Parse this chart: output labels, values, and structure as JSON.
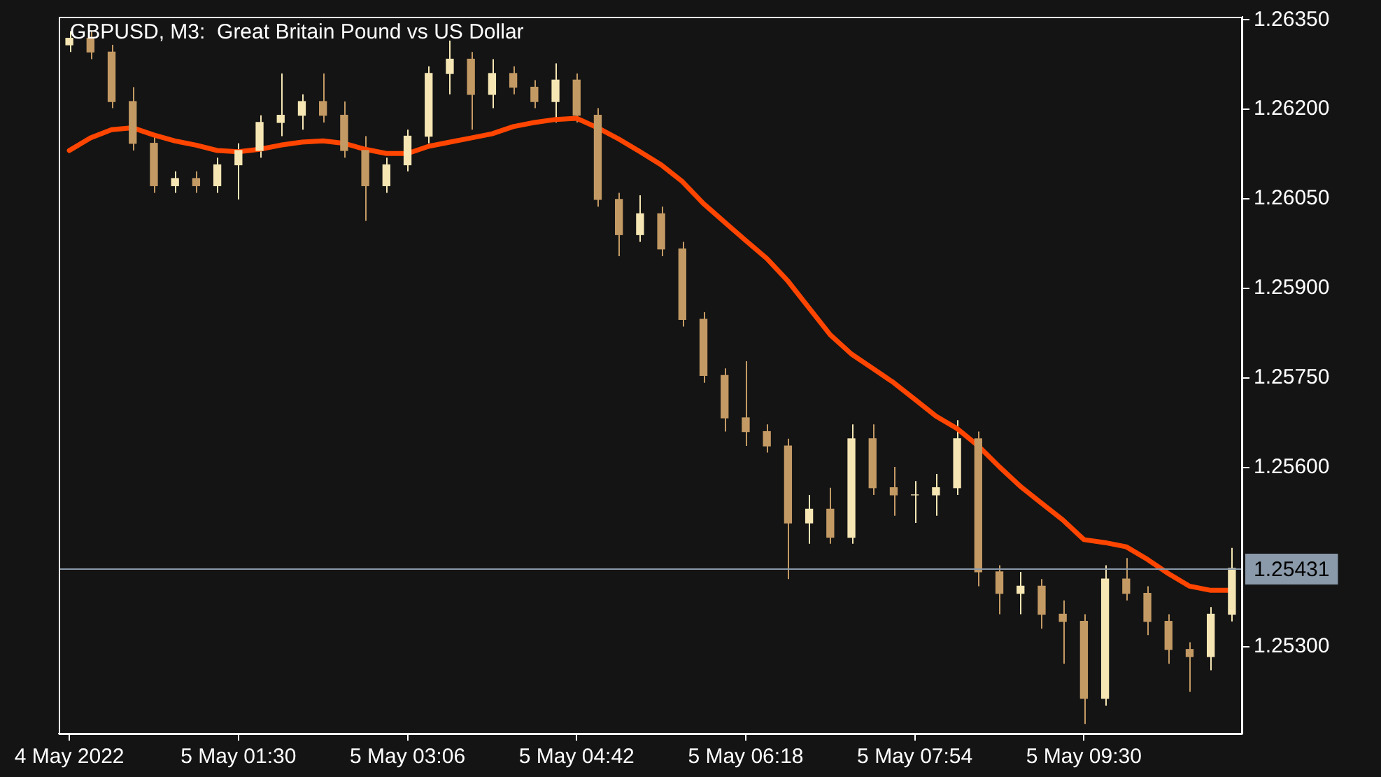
{
  "chart_data": {
    "type": "candlestick",
    "title": "GBPUSD, M3:  Great Britain Pound vs US Dollar",
    "grid": false,
    "legend": false,
    "categories": [
      "4 May 2022",
      null,
      null,
      null,
      null,
      null,
      null,
      null,
      "5 May 01:30",
      null,
      null,
      null,
      null,
      null,
      null,
      null,
      "5 May 03:06",
      null,
      null,
      null,
      null,
      null,
      null,
      null,
      "5 May 04:42",
      null,
      null,
      null,
      null,
      null,
      null,
      null,
      "5 May 06:18",
      null,
      null,
      null,
      null,
      null,
      null,
      null,
      "5 May 07:54",
      null,
      null,
      null,
      null,
      null,
      null,
      null,
      "5 May 09:30",
      null,
      null,
      null,
      null,
      null,
      null,
      null
    ],
    "ylim": [
      1.25154,
      1.26355
    ],
    "yticks": [
      {
        "value": 1.253,
        "label": "1.25300"
      },
      {
        "value": 1.256,
        "label": "1.25600"
      },
      {
        "value": 1.2575,
        "label": "1.25750"
      },
      {
        "value": 1.259,
        "label": "1.25900"
      },
      {
        "value": 1.2605,
        "label": "1.26050"
      },
      {
        "value": 1.262,
        "label": "1.26200"
      },
      {
        "value": 1.2635,
        "label": "1.26350"
      }
    ],
    "ref_lines": [
      {
        "axis": "y",
        "value": 1.25431,
        "label": "1.25431",
        "color": "#8a9aaa"
      }
    ],
    "series": [
      {
        "type": "line",
        "color": "#ff4500",
        "values": [
          1.26131,
          1.26152,
          1.26166,
          1.26169,
          1.26157,
          1.26147,
          1.2614,
          1.26131,
          1.26129,
          1.26133,
          1.2614,
          1.26145,
          1.26147,
          1.26143,
          1.26133,
          1.26126,
          1.26126,
          1.26138,
          1.26145,
          1.26152,
          1.26159,
          1.26171,
          1.26178,
          1.26183,
          1.26185,
          1.26169,
          1.2615,
          1.26129,
          1.26107,
          1.26079,
          1.26042,
          1.26011,
          1.2598,
          1.2595,
          1.25912,
          1.25867,
          1.25822,
          1.2579,
          1.25766,
          1.25742,
          1.25714,
          1.25686,
          1.25665,
          1.25636,
          1.25601,
          1.25568,
          1.2554,
          1.25512,
          1.25479,
          1.25474,
          1.25467,
          1.25446,
          1.25422,
          1.25401,
          1.25394,
          1.25394
        ]
      },
      {
        "ohlc": [
          [
            1.26308,
            1.26331,
            1.26296,
            1.26319
          ],
          [
            1.26319,
            1.26331,
            1.26284,
            1.26296
          ],
          [
            1.26296,
            1.26308,
            1.26202,
            1.26213
          ],
          [
            1.26213,
            1.26237,
            1.26131,
            1.26143
          ],
          [
            1.26143,
            1.26155,
            1.2606,
            1.26072
          ],
          [
            1.26072,
            1.26096,
            1.2606,
            1.26084
          ],
          [
            1.26084,
            1.26096,
            1.2606,
            1.26072
          ],
          [
            1.26072,
            1.26119,
            1.2606,
            1.26107
          ],
          [
            1.26107,
            1.26143,
            1.26049,
            1.26131
          ],
          [
            1.26131,
            1.2619,
            1.26119,
            1.26178
          ],
          [
            1.26178,
            1.2626,
            1.26155,
            1.2619
          ],
          [
            1.2619,
            1.26225,
            1.26166,
            1.26213
          ],
          [
            1.26213,
            1.2626,
            1.26178,
            1.2619
          ],
          [
            1.2619,
            1.26213,
            1.26119,
            1.26131
          ],
          [
            1.26131,
            1.26155,
            1.26013,
            1.26072
          ],
          [
            1.26072,
            1.26119,
            1.2606,
            1.26107
          ],
          [
            1.26107,
            1.26166,
            1.26096,
            1.26155
          ],
          [
            1.26155,
            1.26272,
            1.26143,
            1.2626
          ],
          [
            1.2626,
            1.26315,
            1.26225,
            1.26284
          ],
          [
            1.26284,
            1.26296,
            1.26166,
            1.26225
          ],
          [
            1.26225,
            1.26284,
            1.26202,
            1.2626
          ],
          [
            1.2626,
            1.26272,
            1.26225,
            1.26237
          ],
          [
            1.26237,
            1.26249,
            1.26202,
            1.26213
          ],
          [
            1.26213,
            1.26277,
            1.26178,
            1.26249
          ],
          [
            1.26249,
            1.2626,
            1.26178,
            1.2619
          ],
          [
            1.2619,
            1.26202,
            1.26037,
            1.26049
          ],
          [
            1.26049,
            1.2606,
            1.25954,
            1.2599
          ],
          [
            1.2599,
            1.26056,
            1.25978,
            1.26025
          ],
          [
            1.26025,
            1.26037,
            1.25954,
            1.25966
          ],
          [
            1.25966,
            1.25978,
            1.25836,
            1.25848
          ],
          [
            1.25848,
            1.2586,
            1.25742,
            1.25754
          ],
          [
            1.25754,
            1.25766,
            1.2566,
            1.25683
          ],
          [
            1.25683,
            1.25778,
            1.25636,
            1.2566
          ],
          [
            1.2566,
            1.25672,
            1.25625,
            1.25636
          ],
          [
            1.25636,
            1.25648,
            1.25413,
            1.25507
          ],
          [
            1.25507,
            1.25554,
            1.25472,
            1.2553
          ],
          [
            1.2553,
            1.25566,
            1.25472,
            1.25483
          ],
          [
            1.25483,
            1.25672,
            1.25472,
            1.25648
          ],
          [
            1.25648,
            1.25672,
            1.25554,
            1.25566
          ],
          [
            1.25566,
            1.25601,
            1.25519,
            1.25554
          ],
          [
            1.25554,
            1.25577,
            1.25507,
            1.25554
          ],
          [
            1.25554,
            1.25589,
            1.25519,
            1.25566
          ],
          [
            1.25566,
            1.25679,
            1.25554,
            1.25648
          ],
          [
            1.25648,
            1.2566,
            1.25401,
            1.25425
          ],
          [
            1.25425,
            1.25436,
            1.25354,
            1.25389
          ],
          [
            1.25389,
            1.25425,
            1.25354,
            1.25401
          ],
          [
            1.25401,
            1.25413,
            1.2533,
            1.25354
          ],
          [
            1.25354,
            1.25377,
            1.25271,
            1.25342
          ],
          [
            1.25342,
            1.25354,
            1.2517,
            1.25213
          ],
          [
            1.25213,
            1.25436,
            1.25201,
            1.25413
          ],
          [
            1.25413,
            1.25448,
            1.25377,
            1.25389
          ],
          [
            1.25389,
            1.25401,
            1.25319,
            1.25342
          ],
          [
            1.25342,
            1.25354,
            1.25271,
            1.25295
          ],
          [
            1.25295,
            1.25307,
            1.25224,
            1.25283
          ],
          [
            1.25283,
            1.25366,
            1.2526,
            1.25354
          ],
          [
            1.25354,
            1.25465,
            1.25342,
            1.25431
          ]
        ],
        "colors": [
          "#f5e6b4",
          "#c49a64",
          "#c49a64",
          "#c49a64",
          "#c49a64",
          "#f5e6b4",
          "#c49a64",
          "#f5e6b4",
          "#f5e6b4",
          "#f5e6b4",
          "#f5e6b4",
          "#f5e6b4",
          "#c49a64",
          "#c49a64",
          "#c49a64",
          "#f5e6b4",
          "#f5e6b4",
          "#f5e6b4",
          "#f5e6b4",
          "#c49a64",
          "#f5e6b4",
          "#c49a64",
          "#c49a64",
          "#f5e6b4",
          "#c49a64",
          "#c49a64",
          "#c49a64",
          "#f5e6b4",
          "#c49a64",
          "#c49a64",
          "#c49a64",
          "#c49a64",
          "#c49a64",
          "#c49a64",
          "#c49a64",
          "#f5e6b4",
          "#c49a64",
          "#f5e6b4",
          "#c49a64",
          "#c49a64",
          "#f5e6b4",
          "#f5e6b4",
          "#f5e6b4",
          "#c49a64",
          "#c49a64",
          "#f5e6b4",
          "#c49a64",
          "#c49a64",
          "#c49a64",
          "#f5e6b4",
          "#c49a64",
          "#c49a64",
          "#c49a64",
          "#c49a64",
          "#f5e6b4",
          "#f5e6b4"
        ]
      }
    ]
  }
}
